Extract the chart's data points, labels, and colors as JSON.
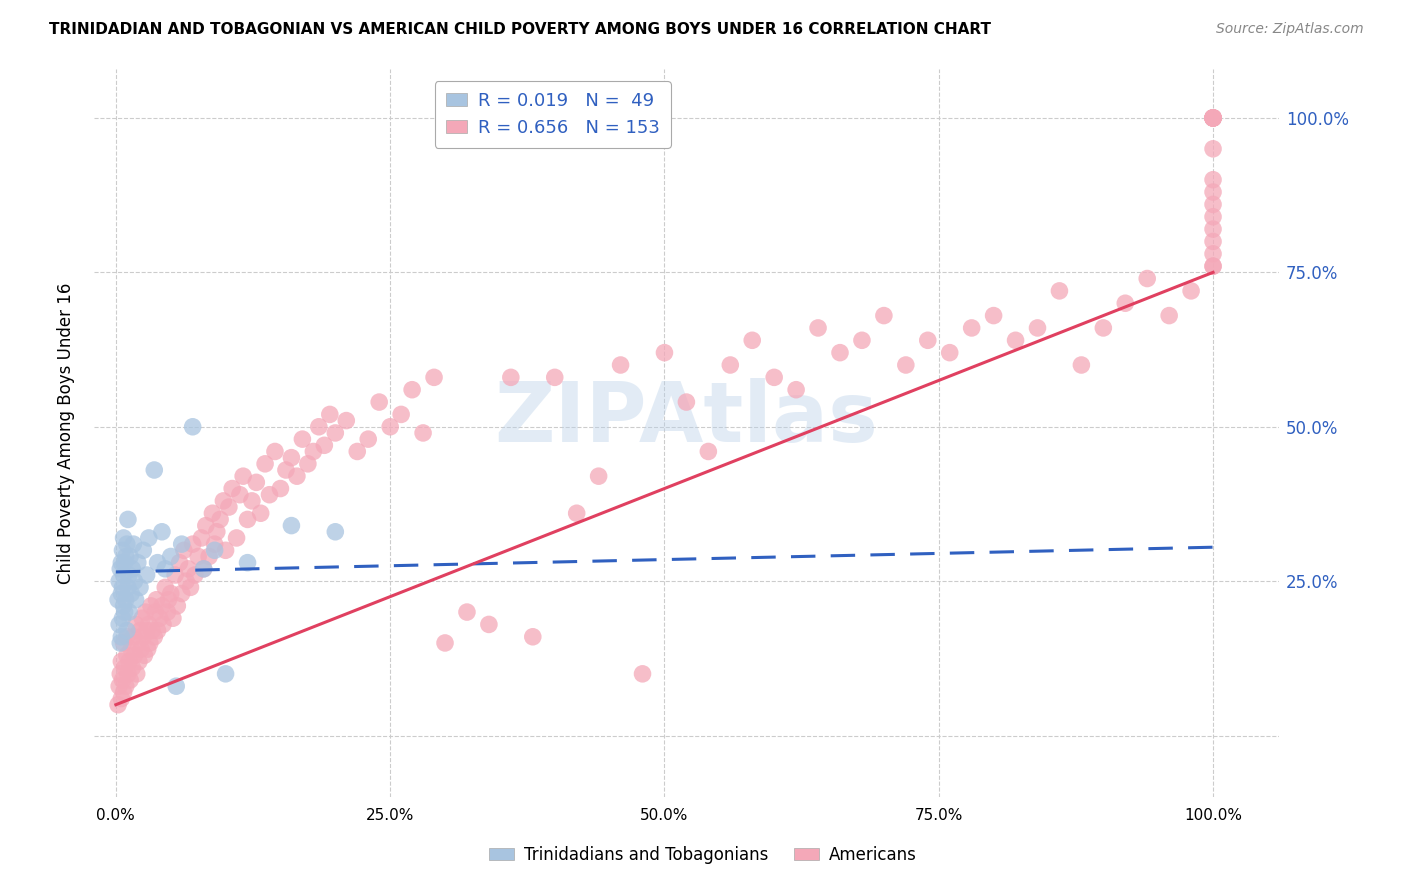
{
  "title": "TRINIDADIAN AND TOBAGONIAN VS AMERICAN CHILD POVERTY AMONG BOYS UNDER 16 CORRELATION CHART",
  "source": "Source: ZipAtlas.com",
  "ylabel": "Child Poverty Among Boys Under 16",
  "legend_r1": "R = 0.019",
  "legend_n1": "N =  49",
  "legend_r2": "R = 0.656",
  "legend_n2": "N = 153",
  "color_blue": "#a8c4e0",
  "color_pink": "#f4a8b8",
  "color_blue_line": "#3060c0",
  "color_pink_line": "#e04060",
  "blue_scatter_x": [
    0.002,
    0.003,
    0.003,
    0.004,
    0.004,
    0.005,
    0.005,
    0.005,
    0.006,
    0.006,
    0.006,
    0.007,
    0.007,
    0.007,
    0.008,
    0.008,
    0.009,
    0.009,
    0.01,
    0.01,
    0.011,
    0.011,
    0.012,
    0.012,
    0.013,
    0.014,
    0.015,
    0.016,
    0.017,
    0.018,
    0.02,
    0.022,
    0.025,
    0.028,
    0.03,
    0.035,
    0.038,
    0.042,
    0.045,
    0.05,
    0.055,
    0.06,
    0.07,
    0.08,
    0.09,
    0.1,
    0.12,
    0.16,
    0.2
  ],
  "blue_scatter_y": [
    0.22,
    0.18,
    0.25,
    0.15,
    0.27,
    0.16,
    0.23,
    0.28,
    0.19,
    0.24,
    0.3,
    0.21,
    0.26,
    0.32,
    0.2,
    0.28,
    0.22,
    0.29,
    0.17,
    0.31,
    0.24,
    0.35,
    0.2,
    0.26,
    0.29,
    0.23,
    0.27,
    0.31,
    0.25,
    0.22,
    0.28,
    0.24,
    0.3,
    0.26,
    0.32,
    0.43,
    0.28,
    0.33,
    0.27,
    0.29,
    0.08,
    0.31,
    0.5,
    0.27,
    0.3,
    0.1,
    0.28,
    0.34,
    0.33
  ],
  "pink_scatter_x": [
    0.002,
    0.003,
    0.004,
    0.005,
    0.005,
    0.006,
    0.007,
    0.007,
    0.008,
    0.009,
    0.01,
    0.01,
    0.011,
    0.012,
    0.013,
    0.014,
    0.015,
    0.016,
    0.017,
    0.018,
    0.019,
    0.02,
    0.021,
    0.022,
    0.023,
    0.024,
    0.025,
    0.026,
    0.027,
    0.028,
    0.029,
    0.03,
    0.031,
    0.032,
    0.033,
    0.035,
    0.036,
    0.037,
    0.038,
    0.04,
    0.042,
    0.043,
    0.045,
    0.047,
    0.048,
    0.05,
    0.052,
    0.054,
    0.056,
    0.058,
    0.06,
    0.062,
    0.064,
    0.066,
    0.068,
    0.07,
    0.072,
    0.075,
    0.078,
    0.08,
    0.082,
    0.085,
    0.088,
    0.09,
    0.092,
    0.095,
    0.098,
    0.1,
    0.103,
    0.106,
    0.11,
    0.113,
    0.116,
    0.12,
    0.124,
    0.128,
    0.132,
    0.136,
    0.14,
    0.145,
    0.15,
    0.155,
    0.16,
    0.165,
    0.17,
    0.175,
    0.18,
    0.185,
    0.19,
    0.195,
    0.2,
    0.21,
    0.22,
    0.23,
    0.24,
    0.25,
    0.26,
    0.27,
    0.28,
    0.29,
    0.3,
    0.32,
    0.34,
    0.36,
    0.38,
    0.4,
    0.42,
    0.44,
    0.46,
    0.48,
    0.5,
    0.52,
    0.54,
    0.56,
    0.58,
    0.6,
    0.62,
    0.64,
    0.66,
    0.68,
    0.7,
    0.72,
    0.74,
    0.76,
    0.78,
    0.8,
    0.82,
    0.84,
    0.86,
    0.88,
    0.9,
    0.92,
    0.94,
    0.96,
    0.98,
    1.0,
    1.0,
    1.0,
    1.0,
    1.0,
    1.0,
    1.0,
    1.0,
    1.0,
    1.0,
    1.0,
    1.0,
    1.0,
    1.0,
    1.0,
    1.0,
    1.0,
    1.0
  ],
  "pink_scatter_y": [
    0.05,
    0.08,
    0.1,
    0.06,
    0.12,
    0.09,
    0.07,
    0.15,
    0.11,
    0.08,
    0.13,
    0.16,
    0.1,
    0.12,
    0.09,
    0.14,
    0.11,
    0.16,
    0.13,
    0.18,
    0.1,
    0.15,
    0.12,
    0.17,
    0.14,
    0.19,
    0.16,
    0.13,
    0.2,
    0.17,
    0.14,
    0.18,
    0.15,
    0.21,
    0.17,
    0.16,
    0.2,
    0.22,
    0.17,
    0.19,
    0.21,
    0.18,
    0.24,
    0.2,
    0.22,
    0.23,
    0.19,
    0.26,
    0.21,
    0.28,
    0.23,
    0.3,
    0.25,
    0.27,
    0.24,
    0.31,
    0.26,
    0.29,
    0.32,
    0.27,
    0.34,
    0.29,
    0.36,
    0.31,
    0.33,
    0.35,
    0.38,
    0.3,
    0.37,
    0.4,
    0.32,
    0.39,
    0.42,
    0.35,
    0.38,
    0.41,
    0.36,
    0.44,
    0.39,
    0.46,
    0.4,
    0.43,
    0.45,
    0.42,
    0.48,
    0.44,
    0.46,
    0.5,
    0.47,
    0.52,
    0.49,
    0.51,
    0.46,
    0.48,
    0.54,
    0.5,
    0.52,
    0.56,
    0.49,
    0.58,
    0.15,
    0.2,
    0.18,
    0.58,
    0.16,
    0.58,
    0.36,
    0.42,
    0.6,
    0.1,
    0.62,
    0.54,
    0.46,
    0.6,
    0.64,
    0.58,
    0.56,
    0.66,
    0.62,
    0.64,
    0.68,
    0.6,
    0.64,
    0.62,
    0.66,
    0.68,
    0.64,
    0.66,
    0.72,
    0.6,
    0.66,
    0.7,
    0.74,
    0.68,
    0.72,
    0.76,
    1.0,
    1.0,
    1.0,
    1.0,
    1.0,
    1.0,
    1.0,
    1.0,
    0.95,
    0.9,
    0.88,
    0.86,
    0.84,
    0.82,
    0.8,
    0.78,
    0.76
  ],
  "ytick_labels_right": [
    "100.0%",
    "75.0%",
    "50.0%",
    "25.0%"
  ],
  "ytick_values_right": [
    1.0,
    0.75,
    0.5,
    0.25
  ],
  "xtick_labels": [
    "0.0%",
    "25.0%",
    "50.0%",
    "75.0%",
    "100.0%"
  ],
  "xtick_values": [
    0.0,
    0.25,
    0.5,
    0.75,
    1.0
  ],
  "ylim": [
    -0.1,
    1.08
  ],
  "xlim": [
    -0.02,
    1.06
  ],
  "background_color": "#ffffff"
}
